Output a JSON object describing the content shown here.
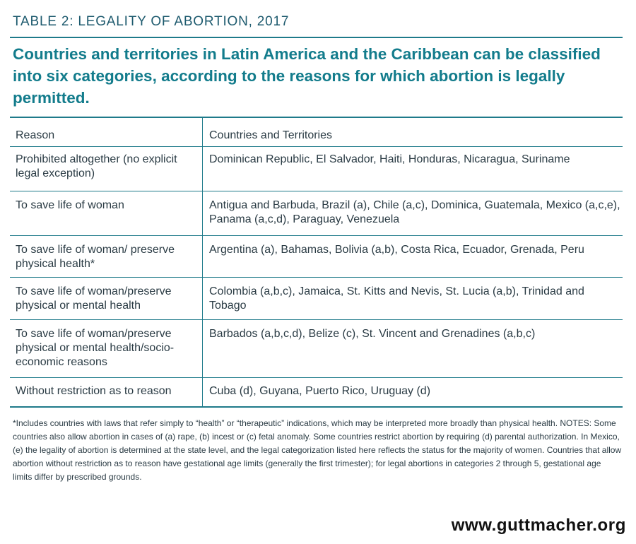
{
  "table_label": "TABLE 2: LEGALITY OF ABORTION, 2017",
  "headline": "Countries and territories in Latin America and the Caribbean can be classified into six categories, according to the reasons for which abortion is legally permitted.",
  "columns": {
    "reason": "Reason",
    "countries": "Countries and Territories"
  },
  "rows": [
    {
      "reason": "Prohibited altogether (no explicit legal exception)",
      "countries": "Dominican Republic, El Salvador, Haiti, Honduras, Nicaragua, Suriname"
    },
    {
      "reason": "To save life of woman",
      "countries": "Antigua and Barbuda, Brazil (a), Chile (a,c), Dominica, Guatemala, Mexico (a,c,e), Panama (a,c,d), Paraguay, Venezuela"
    },
    {
      "reason": "To save life of woman/ preserve physical health*",
      "countries": "Argentina (a), Bahamas, Bolivia (a,b), Costa Rica, Ecuador, Grenada, Peru"
    },
    {
      "reason": "To save life of woman/preserve physical or mental health",
      "countries": "Colombia (a,b,c), Jamaica, St. Kitts and Nevis, St. Lucia (a,b), Trinidad and Tobago"
    },
    {
      "reason": "To save life of woman/preserve physical or mental health/socio-economic reasons",
      "countries": "Barbados (a,b,c,d), Belize (c), St. Vincent and Grenadines (a,b,c)"
    },
    {
      "reason": "Without restriction as to reason",
      "countries": "Cuba (d), Guyana, Puerto Rico, Uruguay (d)"
    }
  ],
  "footnote": "*Includes countries with laws that refer simply to “health” or “therapeutic” indications, which may be interpreted more broadly than physical health. NOTES: Some countries also allow abortion in cases of (a) rape, (b) incest or (c) fetal anomaly. Some countries restrict abortion by requiring (d) parental authorization. In Mexico, (e) the legality of abortion is determined at the state level, and the legal categorization listed here reflects the status for the majority of women. Countries that allow abortion without restriction as to reason have gestational age limits (generally the first trimester); for legal abortions in categories 2 through 5, gestational age limits differ by prescribed grounds.",
  "website": "www.guttmacher.org"
}
